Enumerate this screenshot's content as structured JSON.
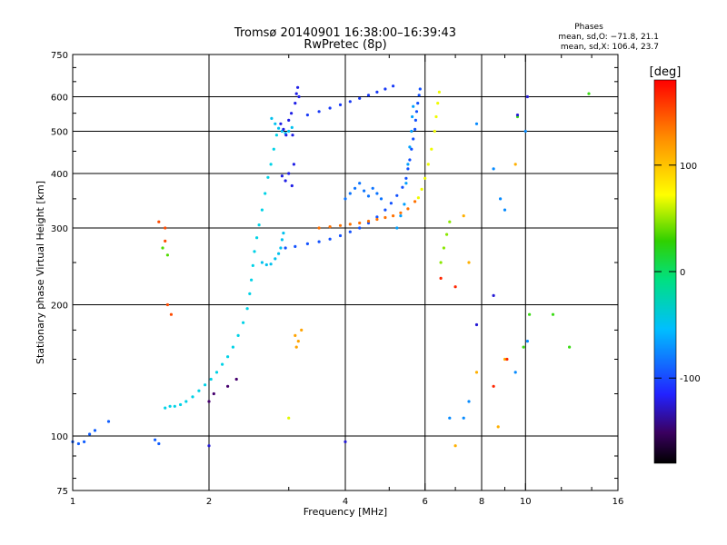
{
  "chart_data": {
    "type": "scatter",
    "title": "Tromsø 20140901 16:38:00–16:39:43",
    "subtitle": "RwPretec (8p)",
    "stats": {
      "heading": "Phases",
      "line1": "mean, sd,O: −71.8, 21.1",
      "line2": "mean, sd,X: 106.4, 23.7"
    },
    "xlabel": "Frequency [MHz]",
    "ylabel": "Stationary phase Virtual Height [km]",
    "xscale": "log",
    "yscale": "log",
    "xlim": [
      1,
      16
    ],
    "ylim": [
      75,
      750
    ],
    "x_ticks": [
      1,
      2,
      4,
      6,
      8,
      10,
      16
    ],
    "x_tick_labels": [
      "1",
      "2",
      "4",
      "6",
      "8",
      "10",
      "16"
    ],
    "x_grid": [
      2,
      4,
      6,
      8,
      10
    ],
    "x_minor": [
      3,
      5,
      7,
      9,
      12,
      14
    ],
    "y_ticks": [
      75,
      100,
      200,
      300,
      400,
      500,
      600,
      750
    ],
    "y_tick_labels": [
      "75",
      "100",
      "200",
      "300",
      "400",
      "500",
      "600",
      "750"
    ],
    "y_grid": [
      100,
      200,
      300,
      400,
      500,
      600
    ],
    "colorbar": {
      "label": "[deg]",
      "range": [
        -180,
        180
      ],
      "ticks": [
        100,
        0,
        -100
      ],
      "tick_labels": [
        "100",
        "0",
        "-100"
      ]
    },
    "series": [
      {
        "color_value": -90,
        "points": [
          [
            1,
            97
          ],
          [
            1.03,
            96
          ],
          [
            1.06,
            97
          ],
          [
            1.09,
            101
          ],
          [
            1.12,
            103
          ],
          [
            1.2,
            108
          ],
          [
            1.52,
            98
          ],
          [
            1.55,
            96
          ]
        ]
      },
      {
        "color_value": -30,
        "points": [
          [
            1.6,
            116
          ],
          [
            1.64,
            117
          ],
          [
            1.68,
            117
          ],
          [
            1.73,
            118
          ],
          [
            1.78,
            120
          ],
          [
            1.84,
            123
          ],
          [
            1.9,
            127
          ],
          [
            1.96,
            131
          ],
          [
            2.02,
            135
          ],
          [
            2.08,
            140
          ],
          [
            2.14,
            146
          ],
          [
            2.2,
            152
          ],
          [
            2.26,
            160
          ],
          [
            2.32,
            170
          ],
          [
            2.38,
            182
          ],
          [
            2.43,
            196
          ],
          [
            2.46,
            212
          ],
          [
            2.48,
            228
          ],
          [
            2.5,
            246
          ],
          [
            2.52,
            265
          ],
          [
            2.55,
            285
          ],
          [
            2.58,
            305
          ],
          [
            2.62,
            330
          ],
          [
            2.66,
            360
          ],
          [
            2.7,
            392
          ],
          [
            2.74,
            420
          ],
          [
            2.78,
            455
          ],
          [
            2.82,
            490
          ]
        ]
      },
      {
        "color_value": -40,
        "points": [
          [
            2.62,
            250
          ],
          [
            2.68,
            247
          ],
          [
            2.74,
            248
          ],
          [
            2.8,
            255
          ],
          [
            2.85,
            262
          ],
          [
            2.88,
            270
          ],
          [
            2.9,
            282
          ],
          [
            2.92,
            292
          ],
          [
            2.75,
            535
          ],
          [
            2.8,
            520
          ],
          [
            2.85,
            508
          ],
          [
            2.9,
            500
          ],
          [
            2.95,
            495
          ],
          [
            3.0,
            500
          ],
          [
            3.05,
            510
          ]
        ]
      },
      {
        "color_value": -95,
        "points": [
          [
            2.95,
            270
          ],
          [
            3.1,
            272
          ],
          [
            3.3,
            276
          ],
          [
            3.5,
            279
          ],
          [
            3.7,
            283
          ],
          [
            3.9,
            288
          ],
          [
            4.1,
            294
          ],
          [
            4.3,
            300
          ],
          [
            4.5,
            308
          ],
          [
            4.7,
            318
          ],
          [
            4.9,
            330
          ],
          [
            5.05,
            342
          ],
          [
            5.2,
            356
          ],
          [
            5.35,
            372
          ],
          [
            5.45,
            390
          ],
          [
            5.5,
            410
          ],
          [
            5.55,
            430
          ],
          [
            5.6,
            455
          ],
          [
            5.65,
            480
          ],
          [
            5.7,
            505
          ],
          [
            5.72,
            530
          ],
          [
            5.75,
            555
          ],
          [
            5.78,
            580
          ],
          [
            5.82,
            605
          ],
          [
            5.85,
            625
          ]
        ]
      },
      {
        "color_value": 150,
        "points": [
          [
            3.5,
            300
          ],
          [
            3.7,
            302
          ],
          [
            3.9,
            304
          ],
          [
            4.1,
            306
          ],
          [
            4.3,
            308
          ],
          [
            4.5,
            311
          ],
          [
            4.7,
            314
          ],
          [
            4.9,
            317
          ],
          [
            5.1,
            320
          ],
          [
            5.3,
            325
          ],
          [
            5.5,
            332
          ],
          [
            5.7,
            345
          ]
        ]
      },
      {
        "color_value": 95,
        "points": [
          [
            5.8,
            352
          ],
          [
            5.9,
            368
          ],
          [
            6.0,
            390
          ],
          [
            6.1,
            420
          ],
          [
            6.2,
            455
          ],
          [
            6.3,
            500
          ],
          [
            6.35,
            540
          ],
          [
            6.4,
            580
          ],
          [
            6.45,
            615
          ]
        ]
      },
      {
        "color_value": -105,
        "points": [
          [
            3.3,
            545
          ],
          [
            3.5,
            555
          ],
          [
            3.7,
            565
          ],
          [
            3.9,
            575
          ],
          [
            4.1,
            585
          ],
          [
            4.3,
            595
          ],
          [
            4.5,
            605
          ],
          [
            4.7,
            615
          ],
          [
            4.9,
            625
          ],
          [
            5.1,
            635
          ]
        ]
      },
      {
        "color_value": -115,
        "points": [
          [
            2.88,
            520
          ],
          [
            2.92,
            505
          ],
          [
            2.96,
            490
          ],
          [
            3.0,
            530
          ],
          [
            3.04,
            550
          ],
          [
            3.06,
            490
          ],
          [
            3.1,
            580
          ],
          [
            3.12,
            610
          ],
          [
            3.14,
            630
          ],
          [
            3.16,
            600
          ],
          [
            2.9,
            395
          ],
          [
            2.95,
            385
          ],
          [
            3.0,
            400
          ],
          [
            3.05,
            375
          ],
          [
            3.08,
            420
          ]
        ]
      },
      {
        "color_value": -60,
        "points": [
          [
            5.2,
            300
          ],
          [
            5.3,
            320
          ],
          [
            5.4,
            340
          ],
          [
            5.45,
            380
          ],
          [
            5.5,
            420
          ],
          [
            5.55,
            460
          ],
          [
            5.6,
            500
          ],
          [
            5.62,
            540
          ],
          [
            5.65,
            570
          ]
        ]
      },
      {
        "color_value": -80,
        "points": [
          [
            4.0,
            350
          ],
          [
            4.1,
            360
          ],
          [
            4.2,
            370
          ],
          [
            4.3,
            380
          ],
          [
            4.4,
            365
          ],
          [
            4.5,
            355
          ],
          [
            4.6,
            370
          ],
          [
            4.7,
            360
          ],
          [
            4.8,
            350
          ]
        ]
      },
      {
        "color_value": 60,
        "points": [
          [
            6.5,
            250
          ],
          [
            6.6,
            270
          ],
          [
            6.7,
            290
          ],
          [
            6.8,
            310
          ]
        ]
      },
      {
        "color_value": -150,
        "points": [
          [
            2.0,
            120
          ],
          [
            2.05,
            125
          ],
          [
            2.2,
            130
          ],
          [
            2.3,
            135
          ]
        ]
      },
      {
        "color_value": 160,
        "points": [
          [
            1.55,
            310
          ],
          [
            1.6,
            300
          ],
          [
            1.62,
            200
          ],
          [
            1.65,
            190
          ],
          [
            1.6,
            280
          ]
        ]
      },
      {
        "color_value": 40,
        "points": [
          [
            1.58,
            270
          ],
          [
            1.62,
            260
          ]
        ]
      },
      {
        "color_value": 135,
        "points": [
          [
            3.1,
            170
          ],
          [
            3.15,
            165
          ],
          [
            3.2,
            175
          ],
          [
            3.12,
            160
          ]
        ]
      },
      {
        "color_value": 90,
        "points": [
          [
            3.0,
            110
          ]
        ]
      },
      {
        "color_value": 30,
        "points": [
          [
            9.6,
            540
          ],
          [
            9.9,
            160
          ],
          [
            10.2,
            190
          ],
          [
            11.5,
            190
          ],
          [
            12.5,
            160
          ],
          [
            13.8,
            610
          ]
        ]
      },
      {
        "color_value": 130,
        "points": [
          [
            7.3,
            320
          ],
          [
            7.5,
            250
          ],
          [
            7.0,
            95
          ],
          [
            9.5,
            420
          ],
          [
            8.7,
            105
          ],
          [
            9.0,
            150
          ],
          [
            7.8,
            140
          ]
        ]
      },
      {
        "color_value": -70,
        "points": [
          [
            7.8,
            520
          ],
          [
            8.5,
            410
          ],
          [
            8.8,
            350
          ],
          [
            9.0,
            330
          ],
          [
            10.0,
            500
          ],
          [
            9.5,
            140
          ],
          [
            10.1,
            165
          ],
          [
            7.3,
            110
          ],
          [
            7.5,
            120
          ],
          [
            6.8,
            110
          ]
        ]
      },
      {
        "color_value": -120,
        "points": [
          [
            7.8,
            180
          ],
          [
            8.5,
            210
          ],
          [
            9.6,
            545
          ],
          [
            10.1,
            600
          ],
          [
            4.0,
            97
          ],
          [
            2.0,
            95
          ]
        ]
      },
      {
        "color_value": 170,
        "points": [
          [
            8.5,
            130
          ],
          [
            9.1,
            150
          ],
          [
            7.0,
            220
          ],
          [
            6.5,
            230
          ]
        ]
      }
    ]
  }
}
